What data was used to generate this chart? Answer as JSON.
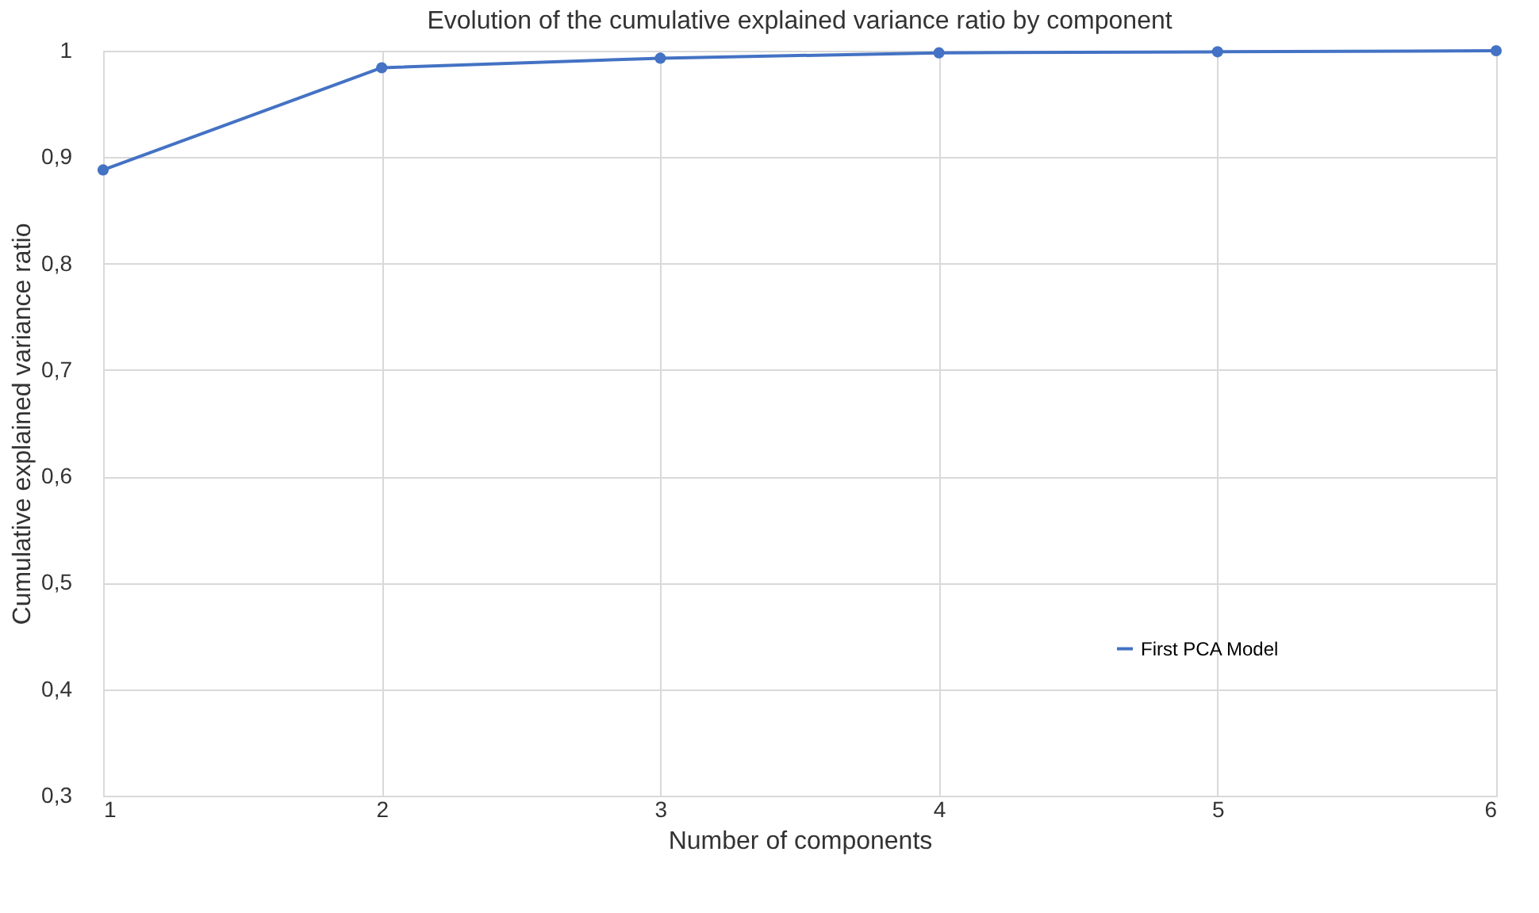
{
  "chart_data": {
    "type": "line",
    "title": "Evolution of the cumulative explained variance ratio by component",
    "xlabel": "Number of components",
    "ylabel": "Cumulative explained variance ratio",
    "x": [
      1,
      2,
      3,
      4,
      5,
      6
    ],
    "series": [
      {
        "name": "First PCA Model",
        "color": "#4472c4",
        "values": [
          0.888,
          0.984,
          0.993,
          0.998,
          0.999,
          1.0
        ]
      }
    ],
    "xlim": [
      1,
      6
    ],
    "xticks": [
      1,
      2,
      3,
      4,
      5,
      6
    ],
    "ylim": [
      0.3,
      1
    ],
    "yticks": [
      {
        "value": 0.3,
        "label": "0,3"
      },
      {
        "value": 0.4,
        "label": "0,4"
      },
      {
        "value": 0.5,
        "label": "0,5"
      },
      {
        "value": 0.6,
        "label": "0,6"
      },
      {
        "value": 0.7,
        "label": "0,7"
      },
      {
        "value": 0.8,
        "label": "0,8"
      },
      {
        "value": 0.9,
        "label": "0,9"
      },
      1
    ],
    "grid": true,
    "legend": "right",
    "marker": "circle",
    "line_style": "solid"
  }
}
